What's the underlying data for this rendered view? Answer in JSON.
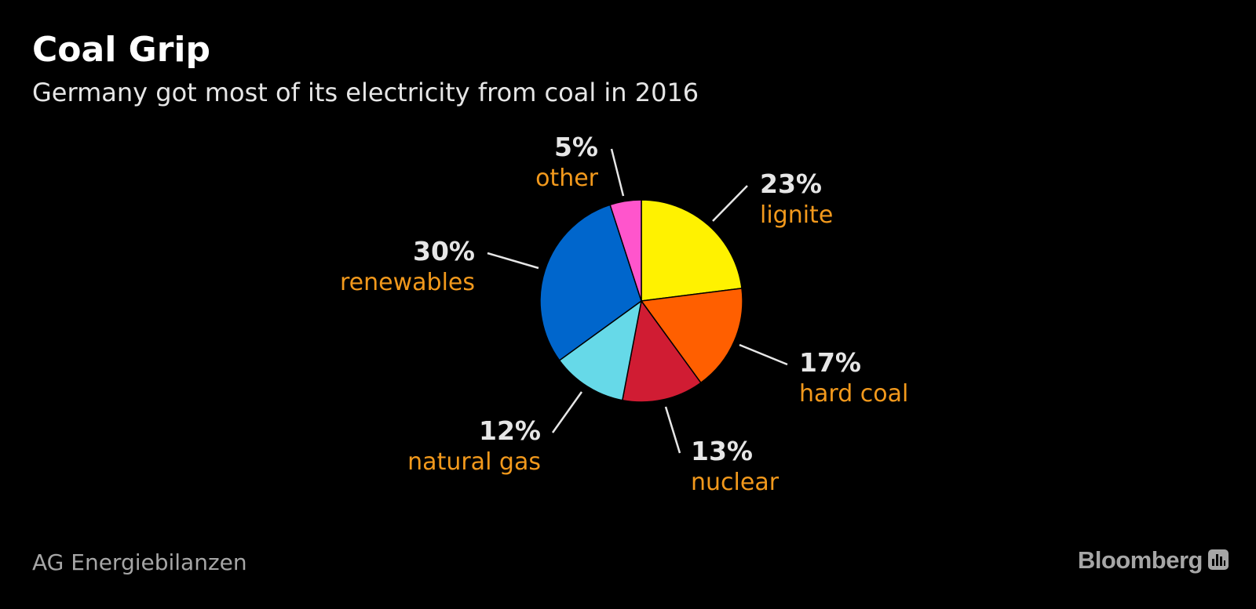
{
  "header": {
    "title": "Coal Grip",
    "subtitle": "Germany got most of its electricity from coal in 2016"
  },
  "footer": {
    "source": "AG Energiebilanzen",
    "brand": "Bloomberg"
  },
  "chart_data": {
    "type": "pie",
    "title": "Coal Grip",
    "subtitle": "Germany got most of its electricity from coal in 2016",
    "legend": "none",
    "slices": [
      {
        "name": "lignite",
        "value": 23,
        "label": "23%",
        "color": "#fff200"
      },
      {
        "name": "hard coal",
        "value": 17,
        "label": "17%",
        "color": "#ff5f00"
      },
      {
        "name": "nuclear",
        "value": 13,
        "label": "13%",
        "color": "#d01c33"
      },
      {
        "name": "natural gas",
        "value": 12,
        "label": "12%",
        "color": "#66d9e8"
      },
      {
        "name": "renewables",
        "value": 30,
        "label": "30%",
        "color": "#0066cc"
      },
      {
        "name": "other",
        "value": 5,
        "label": "5%",
        "color": "#ff55cc"
      }
    ]
  }
}
